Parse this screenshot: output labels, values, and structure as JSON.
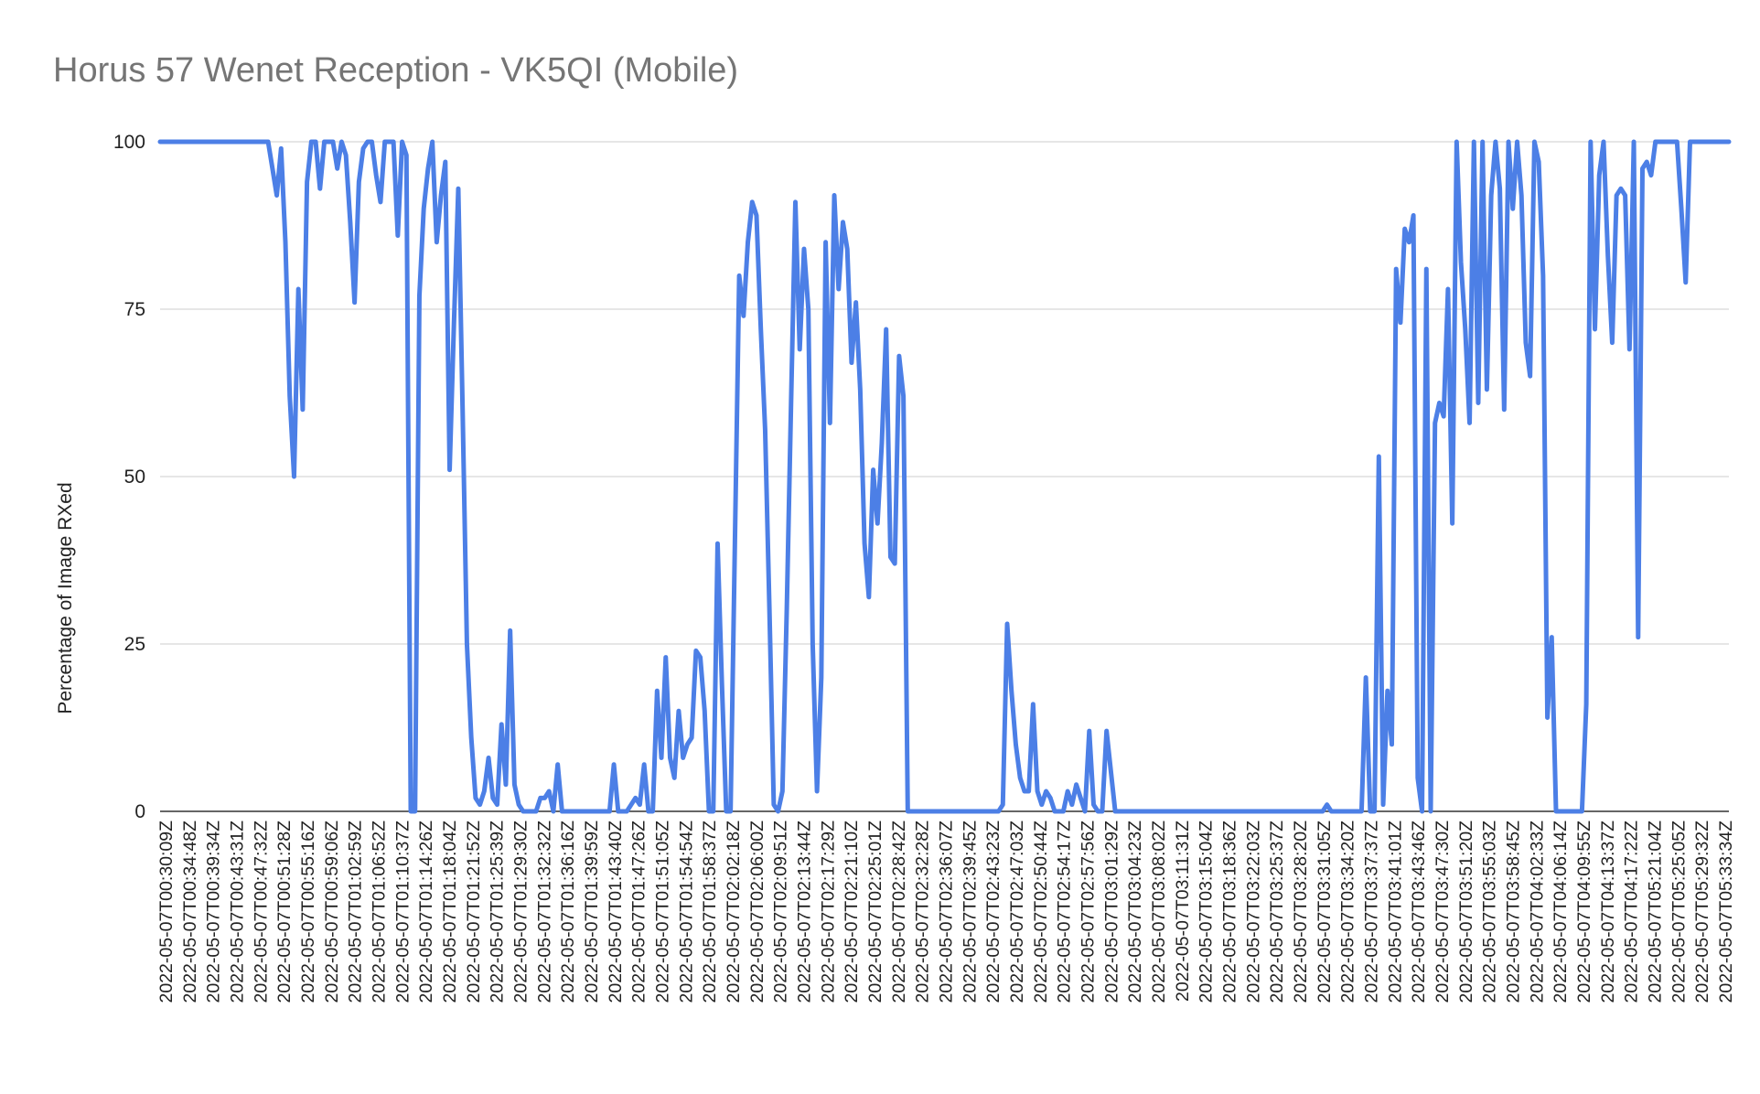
{
  "chart_data": {
    "type": "line",
    "title": "Horus 57 Wenet Reception - VK5QI (Mobile)",
    "xlabel": "",
    "ylabel": "Percentage of Image RXed",
    "ylim": [
      0,
      100
    ],
    "y_ticks": [
      0,
      25,
      50,
      75,
      100
    ],
    "grid": true,
    "color": "#4c7fe6",
    "x_tick_labels": [
      "2022-05-07T00:30:09Z",
      "2022-05-07T00:34:48Z",
      "2022-05-07T00:39:34Z",
      "2022-05-07T00:43:31Z",
      "2022-05-07T00:47:32Z",
      "2022-05-07T00:51:28Z",
      "2022-05-07T00:55:16Z",
      "2022-05-07T00:59:06Z",
      "2022-05-07T01:02:59Z",
      "2022-05-07T01:06:52Z",
      "2022-05-07T01:10:37Z",
      "2022-05-07T01:14:26Z",
      "2022-05-07T01:18:04Z",
      "2022-05-07T01:21:52Z",
      "2022-05-07T01:25:39Z",
      "2022-05-07T01:29:30Z",
      "2022-05-07T01:32:32Z",
      "2022-05-07T01:36:16Z",
      "2022-05-07T01:39:59Z",
      "2022-05-07T01:43:40Z",
      "2022-05-07T01:47:26Z",
      "2022-05-07T01:51:05Z",
      "2022-05-07T01:54:54Z",
      "2022-05-07T01:58:37Z",
      "2022-05-07T02:02:18Z",
      "2022-05-07T02:06:00Z",
      "2022-05-07T02:09:51Z",
      "2022-05-07T02:13:44Z",
      "2022-05-07T02:17:29Z",
      "2022-05-07T02:21:10Z",
      "2022-05-07T02:25:01Z",
      "2022-05-07T02:28:42Z",
      "2022-05-07T02:32:28Z",
      "2022-05-07T02:36:07Z",
      "2022-05-07T02:39:45Z",
      "2022-05-07T02:43:23Z",
      "2022-05-07T02:47:03Z",
      "2022-05-07T02:50:44Z",
      "2022-05-07T02:54:17Z",
      "2022-05-07T02:57:56Z",
      "2022-05-07T03:01:29Z",
      "2022-05-07T03:04:23Z",
      "2022-05-07T03:08:02Z",
      "2022-05-07T03:11:31Z",
      "2022-05-07T03:15:04Z",
      "2022-05-07T03:18:36Z",
      "2022-05-07T03:22:03Z",
      "2022-05-07T03:25:37Z",
      "2022-05-07T03:28:20Z",
      "2022-05-07T03:31:05Z",
      "2022-05-07T03:34:20Z",
      "2022-05-07T03:37:37Z",
      "2022-05-07T03:41:01Z",
      "2022-05-07T03:43:46Z",
      "2022-05-07T03:47:30Z",
      "2022-05-07T03:51:20Z",
      "2022-05-07T03:55:03Z",
      "2022-05-07T03:58:45Z",
      "2022-05-07T04:02:33Z",
      "2022-05-07T04:06:14Z",
      "2022-05-07T04:09:55Z",
      "2022-05-07T04:13:37Z",
      "2022-05-07T04:17:22Z",
      "2022-05-07T05:21:04Z",
      "2022-05-07T05:25:05Z",
      "2022-05-07T05:29:32Z",
      "2022-05-07T05:33:34Z"
    ],
    "series": [
      {
        "values": [
          100,
          100,
          100,
          100,
          100,
          100,
          100,
          100,
          100,
          100,
          100,
          100,
          100,
          100,
          100,
          100,
          100,
          100,
          100,
          100,
          100,
          100,
          100,
          100,
          100,
          100,
          96,
          92,
          99,
          85,
          62,
          50,
          78,
          60,
          94,
          100,
          100,
          93,
          100,
          100,
          100,
          96,
          100,
          98,
          88,
          76,
          94,
          99,
          100,
          100,
          95,
          91,
          100,
          100,
          100,
          86,
          100,
          98,
          0,
          0,
          77,
          90,
          96,
          100,
          85,
          92,
          97,
          51,
          73,
          93,
          60,
          25,
          11,
          2,
          1,
          3,
          8,
          2,
          1,
          13,
          4,
          27,
          4,
          1,
          0,
          0,
          0,
          0,
          2,
          2,
          3,
          0,
          7,
          0,
          0,
          0,
          0,
          0,
          0,
          0,
          0,
          0,
          0,
          0,
          0,
          7,
          0,
          0,
          0,
          1,
          2,
          1,
          7,
          0,
          0,
          18,
          8,
          23,
          8,
          5,
          15,
          8,
          10,
          11,
          24,
          23,
          15,
          0,
          0,
          40,
          19,
          0,
          0,
          40,
          80,
          74,
          85,
          91,
          89,
          72,
          57,
          30,
          1,
          0,
          3,
          30,
          61,
          91,
          69,
          84,
          75,
          25,
          3,
          20,
          85,
          58,
          92,
          78,
          88,
          84,
          67,
          76,
          63,
          40,
          32,
          51,
          43,
          55,
          72,
          38,
          37,
          68,
          62,
          0,
          0,
          0,
          0,
          0,
          0,
          0,
          0,
          0,
          0,
          0,
          0,
          0,
          0,
          0,
          0,
          0,
          0,
          0,
          0,
          0,
          0,
          1,
          28,
          18,
          10,
          5,
          3,
          3,
          16,
          3,
          1,
          3,
          2,
          0,
          0,
          0,
          3,
          1,
          4,
          2,
          0,
          12,
          1,
          0,
          0,
          12,
          6,
          0,
          0,
          0,
          0,
          0,
          0,
          0,
          0,
          0,
          0,
          0,
          0,
          0,
          0,
          0,
          0,
          0,
          0,
          0,
          0,
          0,
          0,
          0,
          0,
          0,
          0,
          0,
          0,
          0,
          0,
          0,
          0,
          0,
          0,
          0,
          0,
          0,
          0,
          0,
          0,
          0,
          0,
          0,
          0,
          0,
          0,
          0,
          0,
          0,
          1,
          0,
          0,
          0,
          0,
          0,
          0,
          0,
          0,
          20,
          0,
          0,
          53,
          1,
          18,
          10,
          81,
          73,
          87,
          85,
          89,
          5,
          0,
          81,
          0,
          58,
          61,
          59,
          78,
          43,
          100,
          82,
          72,
          58,
          100,
          61,
          100,
          63,
          92,
          100,
          93,
          60,
          100,
          90,
          100,
          92,
          70,
          65,
          100,
          97,
          80,
          14,
          26,
          0,
          0,
          0,
          0,
          0,
          0,
          0,
          16,
          100,
          72,
          95,
          100,
          83,
          70,
          92,
          93,
          92,
          69,
          100,
          26,
          96,
          97,
          95,
          100,
          100,
          100,
          100,
          100,
          100,
          90,
          79,
          100,
          100,
          100,
          100,
          100,
          100,
          100,
          100,
          100,
          100
        ]
      }
    ]
  }
}
